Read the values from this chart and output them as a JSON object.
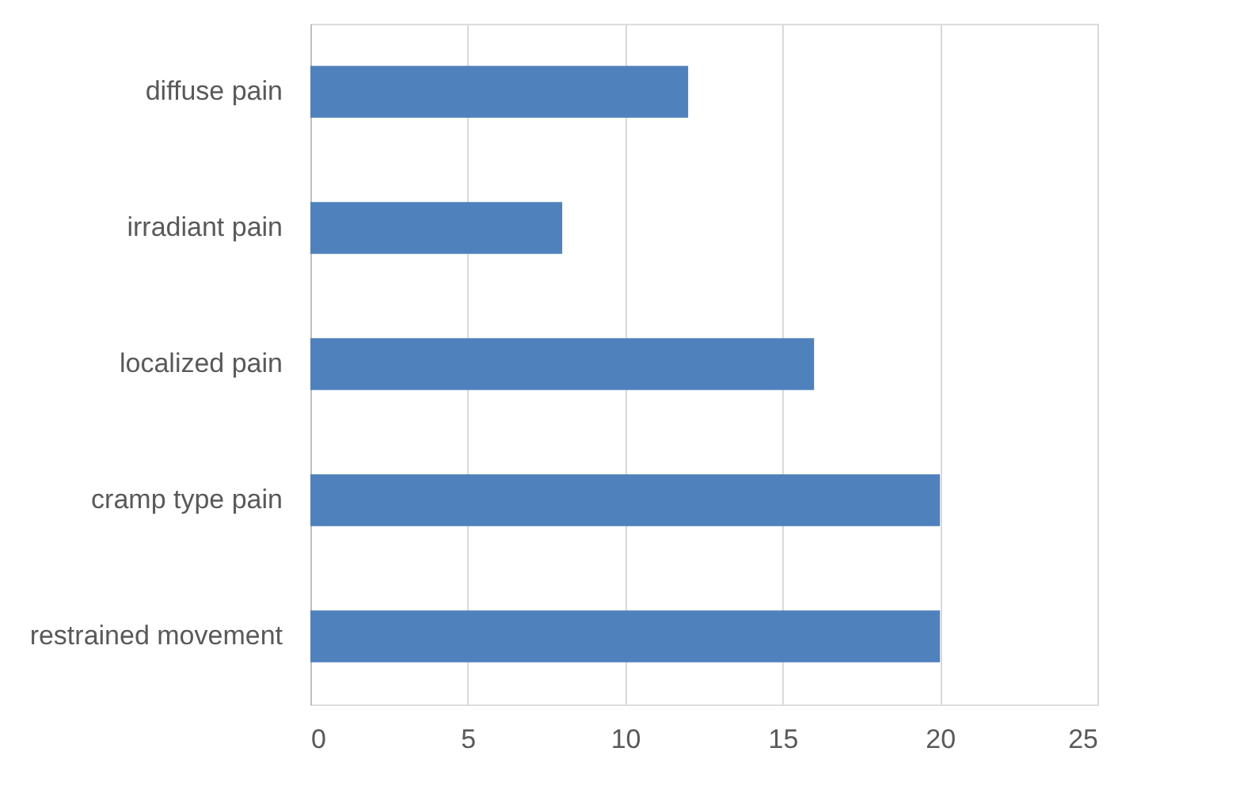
{
  "chart_data": {
    "type": "bar",
    "orientation": "horizontal",
    "categories": [
      "diffuse pain",
      "irradiant pain",
      "localized pain",
      "cramp type pain",
      "restrained movement"
    ],
    "values": [
      12,
      8,
      16,
      20,
      20
    ],
    "color": "#4f81bd",
    "xlim": [
      0,
      25
    ],
    "xticks": [
      0,
      5,
      10,
      15,
      20,
      25
    ],
    "grid": "x"
  }
}
